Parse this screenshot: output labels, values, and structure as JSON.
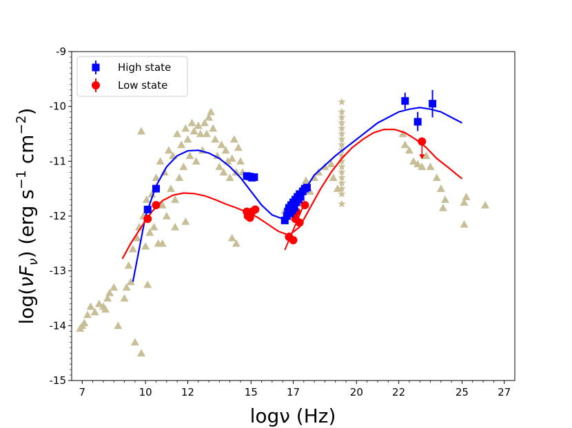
{
  "chart_data": {
    "type": "scatter",
    "xlabel": "logν (Hz)",
    "ylabel_parts": {
      "pre": "log(",
      "nu": "ν",
      "F": "F",
      "sub": "ν",
      "post": ") (erg s",
      "exp1": "−1",
      "mid": " cm",
      "exp2": "−2",
      "close": ")"
    },
    "xlim": [
      6.5,
      27.5
    ],
    "ylim": [
      -15,
      -9
    ],
    "xticks": [
      7,
      10,
      12,
      15,
      17,
      20,
      22,
      25,
      27
    ],
    "xtick_labels": [
      "7",
      "10",
      "12",
      "15",
      "17",
      "20",
      "22",
      "25",
      "27"
    ],
    "yticks": [
      -15,
      -14,
      -13,
      -12,
      -11,
      -10,
      -9
    ],
    "ytick_labels": [
      "-15",
      "-14",
      "-13",
      "-12",
      "-11",
      "-10",
      "-9"
    ],
    "legend_position": "top-left",
    "legend": [
      {
        "label": "High state",
        "color": "#0000ff",
        "marker": "square"
      },
      {
        "label": "Low state",
        "color": "#ff0000",
        "marker": "circle"
      }
    ],
    "colors": {
      "archival": "#c8bf98",
      "high": "#0000ff",
      "low": "#ff0000"
    },
    "series": [
      {
        "name": "High state",
        "color": "#0000ff",
        "marker": "square",
        "points": [
          [
            10.1,
            -11.88
          ],
          [
            10.5,
            -11.5
          ],
          [
            14.8,
            -11.27
          ],
          [
            14.95,
            -11.28
          ],
          [
            15.05,
            -11.3
          ],
          [
            15.15,
            -11.29
          ],
          [
            16.6,
            -12.08
          ],
          [
            16.7,
            -12.0
          ],
          [
            16.75,
            -11.92
          ],
          [
            16.8,
            -11.85
          ],
          [
            16.85,
            -11.95
          ],
          [
            16.9,
            -11.8
          ],
          [
            16.95,
            -11.9
          ],
          [
            17.0,
            -11.75
          ],
          [
            17.05,
            -11.85
          ],
          [
            17.1,
            -11.7
          ],
          [
            17.15,
            -11.75
          ],
          [
            17.2,
            -11.65
          ],
          [
            17.25,
            -11.7
          ],
          [
            17.3,
            -11.6
          ],
          [
            17.35,
            -11.65
          ],
          [
            17.45,
            -11.55
          ],
          [
            17.55,
            -11.5
          ],
          [
            17.65,
            -11.48
          ],
          [
            22.3,
            -9.9
          ],
          [
            22.9,
            -10.28
          ],
          [
            23.6,
            -9.95
          ]
        ],
        "errors": [
          [
            22.3,
            -9.75,
            -10.05
          ],
          [
            22.9,
            -10.1,
            -10.45
          ],
          [
            23.6,
            -9.7,
            -10.2
          ]
        ]
      },
      {
        "name": "Low state",
        "color": "#ff0000",
        "marker": "circle",
        "points": [
          [
            10.1,
            -12.05
          ],
          [
            10.5,
            -11.8
          ],
          [
            14.8,
            -11.92
          ],
          [
            14.85,
            -12.0
          ],
          [
            14.95,
            -12.03
          ],
          [
            15.05,
            -11.92
          ],
          [
            15.2,
            -11.88
          ],
          [
            16.8,
            -12.38
          ],
          [
            17.0,
            -12.44
          ],
          [
            17.1,
            -12.05
          ],
          [
            17.15,
            -11.92
          ],
          [
            17.3,
            -12.12
          ],
          [
            17.55,
            -11.8
          ],
          [
            23.1,
            -10.64
          ]
        ],
        "errors": [
          [
            16.8,
            -12.3,
            -12.45
          ]
        ],
        "upper_limits": [
          [
            23.1,
            -10.64,
            -10.95
          ]
        ],
        "segment": [
          [
            16.6,
            -12.62
          ],
          [
            17.55,
            -11.75
          ]
        ]
      },
      {
        "name": "",
        "color": "#c8bf98",
        "marker": "triangle",
        "points": [
          [
            6.9,
            -14.05
          ],
          [
            7.0,
            -14.0
          ],
          [
            7.1,
            -13.95
          ],
          [
            7.25,
            -13.8
          ],
          [
            7.4,
            -13.65
          ],
          [
            7.6,
            -13.75
          ],
          [
            7.8,
            -13.6
          ],
          [
            8.0,
            -13.65
          ],
          [
            8.1,
            -13.7
          ],
          [
            8.2,
            -13.5
          ],
          [
            8.3,
            -13.4
          ],
          [
            8.5,
            -13.3
          ],
          [
            8.7,
            -14.0
          ],
          [
            9.0,
            -13.5
          ],
          [
            9.1,
            -13.3
          ],
          [
            9.3,
            -13.2
          ],
          [
            9.2,
            -12.9
          ],
          [
            9.4,
            -12.6
          ],
          [
            9.5,
            -14.3
          ],
          [
            9.6,
            -12.4
          ],
          [
            9.7,
            -12.2
          ],
          [
            9.8,
            -14.5
          ],
          [
            9.8,
            -10.45
          ],
          [
            9.9,
            -12.0
          ],
          [
            10.0,
            -12.55
          ],
          [
            10.1,
            -13.25
          ],
          [
            10.05,
            -11.7
          ],
          [
            10.2,
            -12.3
          ],
          [
            10.3,
            -11.6
          ],
          [
            10.4,
            -12.2
          ],
          [
            10.5,
            -11.3
          ],
          [
            10.6,
            -12.5
          ],
          [
            10.7,
            -11.0
          ],
          [
            10.8,
            -11.8
          ],
          [
            10.9,
            -11.2
          ],
          [
            11.0,
            -12.0
          ],
          [
            11.1,
            -10.8
          ],
          [
            11.2,
            -11.5
          ],
          [
            11.3,
            -10.9
          ],
          [
            11.4,
            -11.7
          ],
          [
            11.5,
            -10.5
          ],
          [
            11.6,
            -11.3
          ],
          [
            11.7,
            -10.7
          ],
          [
            11.8,
            -11.1
          ],
          [
            11.9,
            -10.4
          ],
          [
            12.0,
            -10.6
          ],
          [
            12.1,
            -10.9
          ],
          [
            12.2,
            -10.3
          ],
          [
            12.3,
            -10.45
          ],
          [
            12.4,
            -11.0
          ],
          [
            12.5,
            -10.35
          ],
          [
            12.6,
            -10.5
          ],
          [
            12.7,
            -10.8
          ],
          [
            12.8,
            -10.3
          ],
          [
            12.9,
            -10.5
          ],
          [
            13.0,
            -10.2
          ],
          [
            13.1,
            -10.1
          ],
          [
            13.2,
            -10.4
          ],
          [
            13.3,
            -10.6
          ],
          [
            13.4,
            -10.9
          ],
          [
            13.5,
            -11.1
          ],
          [
            13.6,
            -10.7
          ],
          [
            13.7,
            -11.2
          ],
          [
            13.8,
            -10.8
          ],
          [
            13.9,
            -11.0
          ],
          [
            14.0,
            -11.3
          ],
          [
            14.1,
            -10.95
          ],
          [
            14.2,
            -10.6
          ],
          [
            14.3,
            -11.2
          ],
          [
            14.4,
            -10.75
          ],
          [
            14.5,
            -11.0
          ],
          [
            14.6,
            -11.2
          ],
          [
            14.1,
            -12.4
          ],
          [
            14.3,
            -12.5
          ],
          [
            11.9,
            -12.1
          ],
          [
            11.4,
            -12.2
          ],
          [
            10.8,
            -12.5
          ],
          [
            16.6,
            -11.9
          ],
          [
            16.8,
            -11.8
          ],
          [
            17.0,
            -11.95
          ],
          [
            17.2,
            -11.6
          ],
          [
            17.4,
            -11.5
          ],
          [
            17.6,
            -11.35
          ],
          [
            17.8,
            -11.55
          ],
          [
            18.0,
            -11.3
          ],
          [
            18.2,
            -11.2
          ],
          [
            18.5,
            -11.1
          ],
          [
            18.8,
            -11.05
          ],
          [
            18.9,
            -11.3
          ],
          [
            19.1,
            -11.5
          ],
          [
            22.2,
            -10.5
          ],
          [
            22.3,
            -10.7
          ],
          [
            22.5,
            -10.8
          ],
          [
            22.7,
            -11.0
          ],
          [
            22.9,
            -11.05
          ],
          [
            23.1,
            -11.1
          ],
          [
            23.3,
            -10.9
          ],
          [
            23.5,
            -11.1
          ],
          [
            23.8,
            -11.3
          ],
          [
            24.0,
            -11.5
          ],
          [
            24.2,
            -11.7
          ],
          [
            24.1,
            -11.85
          ],
          [
            25.1,
            -11.75
          ],
          [
            25.2,
            -11.65
          ],
          [
            25.1,
            -12.15
          ],
          [
            26.1,
            -11.8
          ]
        ]
      },
      {
        "name": "",
        "color": "#c8bf98",
        "marker": "star",
        "points": [
          [
            19.3,
            -9.92
          ],
          [
            19.3,
            -10.1
          ],
          [
            19.3,
            -10.2
          ],
          [
            19.3,
            -10.3
          ],
          [
            19.3,
            -10.4
          ],
          [
            19.3,
            -10.5
          ],
          [
            19.3,
            -10.6
          ],
          [
            19.3,
            -10.7
          ],
          [
            19.3,
            -10.8
          ],
          [
            19.3,
            -10.9
          ],
          [
            19.3,
            -11.0
          ],
          [
            19.3,
            -11.1
          ],
          [
            19.3,
            -11.2
          ],
          [
            19.3,
            -11.3
          ],
          [
            19.3,
            -11.4
          ],
          [
            19.3,
            -11.5
          ],
          [
            19.3,
            -11.6
          ],
          [
            19.3,
            -11.78
          ]
        ]
      }
    ],
    "fit_curves": [
      {
        "color": "#0000ff",
        "points": [
          [
            9.4,
            -13.2
          ],
          [
            9.7,
            -12.6
          ],
          [
            10.0,
            -12.0
          ],
          [
            10.5,
            -11.45
          ],
          [
            11.0,
            -11.1
          ],
          [
            11.5,
            -10.9
          ],
          [
            12.0,
            -10.81
          ],
          [
            12.5,
            -10.8
          ],
          [
            13.0,
            -10.85
          ],
          [
            13.5,
            -10.95
          ],
          [
            14.0,
            -11.1
          ],
          [
            14.5,
            -11.3
          ],
          [
            15.0,
            -11.55
          ],
          [
            15.5,
            -11.8
          ],
          [
            16.0,
            -11.98
          ],
          [
            16.5,
            -12.05
          ],
          [
            17.0,
            -11.9
          ],
          [
            17.5,
            -11.55
          ],
          [
            18.0,
            -11.25
          ],
          [
            19.0,
            -10.9
          ],
          [
            20.0,
            -10.6
          ],
          [
            21.0,
            -10.3
          ],
          [
            22.0,
            -10.1
          ],
          [
            22.5,
            -10.05
          ],
          [
            23.0,
            -10.02
          ],
          [
            23.5,
            -10.05
          ],
          [
            24.0,
            -10.1
          ],
          [
            24.5,
            -10.2
          ],
          [
            25.0,
            -10.3
          ]
        ]
      },
      {
        "color": "#ff0000",
        "points": [
          [
            8.9,
            -12.78
          ],
          [
            9.3,
            -12.5
          ],
          [
            9.8,
            -12.2
          ],
          [
            10.3,
            -11.92
          ],
          [
            10.8,
            -11.72
          ],
          [
            11.3,
            -11.62
          ],
          [
            11.8,
            -11.58
          ],
          [
            12.3,
            -11.59
          ],
          [
            12.8,
            -11.63
          ],
          [
            13.3,
            -11.7
          ],
          [
            13.8,
            -11.78
          ],
          [
            14.3,
            -11.85
          ],
          [
            14.8,
            -11.93
          ],
          [
            15.3,
            -12.02
          ],
          [
            15.8,
            -12.15
          ],
          [
            16.3,
            -12.28
          ],
          [
            16.8,
            -12.35
          ],
          [
            17.3,
            -12.2
          ],
          [
            17.8,
            -11.85
          ],
          [
            18.3,
            -11.5
          ],
          [
            18.8,
            -11.2
          ],
          [
            19.3,
            -10.95
          ],
          [
            19.8,
            -10.75
          ],
          [
            20.3,
            -10.6
          ],
          [
            20.8,
            -10.48
          ],
          [
            21.3,
            -10.42
          ],
          [
            21.8,
            -10.42
          ],
          [
            22.3,
            -10.48
          ],
          [
            22.8,
            -10.6
          ],
          [
            23.3,
            -10.75
          ],
          [
            23.8,
            -10.95
          ],
          [
            24.3,
            -11.1
          ],
          [
            25.0,
            -11.32
          ]
        ]
      }
    ]
  }
}
